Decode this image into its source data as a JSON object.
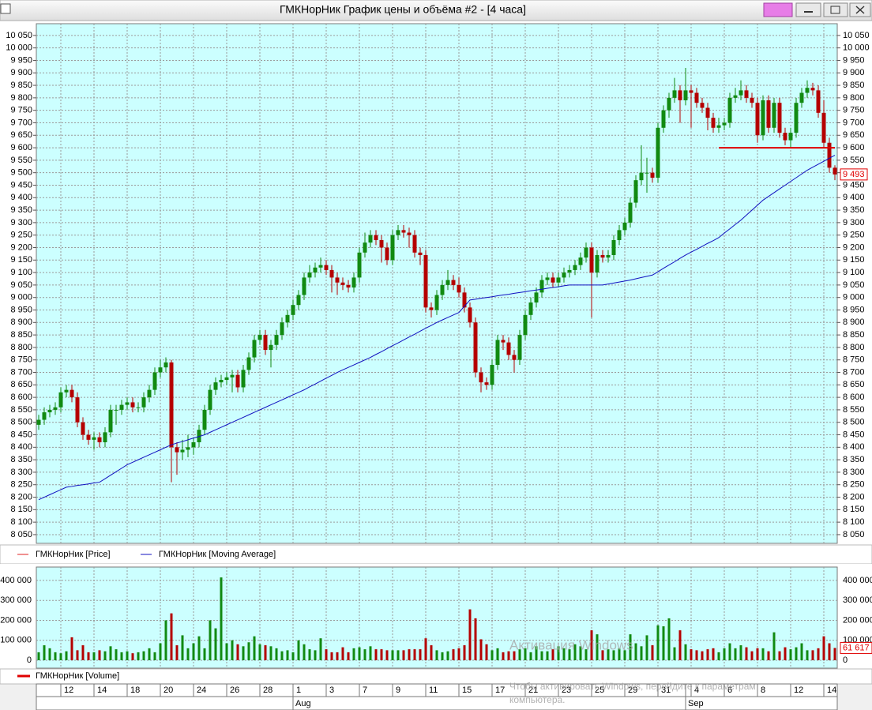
{
  "chart_data": {
    "type": "candlestick",
    "title": "ГМКНорНик График цены и объёма #2 - [4 часа]",
    "categories": [
      null,
      null,
      null,
      null,
      "12",
      null,
      null,
      null,
      null,
      null,
      "14",
      null,
      null,
      null,
      null,
      null,
      "18",
      null,
      null,
      null,
      null,
      null,
      "20",
      null,
      null,
      null,
      null,
      null,
      "24",
      null,
      null,
      null,
      null,
      null,
      "26",
      null,
      null,
      null,
      null,
      null,
      "28",
      null,
      null,
      null,
      null,
      null,
      "1",
      null,
      null,
      null,
      null,
      null,
      "3",
      null,
      null,
      null,
      null,
      null,
      "7",
      null,
      null,
      null,
      null,
      null,
      "9",
      null,
      null,
      null,
      null,
      null,
      "11",
      null,
      null,
      null,
      null,
      null,
      "15",
      null,
      null,
      null,
      null,
      null,
      "17",
      null,
      null,
      null,
      null,
      null,
      "21",
      null,
      null,
      null,
      null,
      null,
      "23",
      null,
      null,
      null,
      null,
      null,
      "25",
      null,
      null,
      null,
      null,
      null,
      "29",
      null,
      null,
      null,
      null,
      null,
      "31",
      null,
      null,
      null,
      null,
      null,
      "4",
      null,
      null,
      null,
      null,
      null,
      "6",
      null,
      null,
      null,
      null,
      null,
      "8",
      null,
      null,
      null,
      null,
      null,
      "12",
      null,
      null,
      null,
      null,
      null,
      "14",
      null,
      null
    ],
    "months": [
      null,
      null,
      null,
      null,
      null,
      null,
      null,
      null,
      null,
      null,
      null,
      null,
      null,
      null,
      null,
      null,
      null,
      null,
      null,
      null,
      null,
      null,
      null,
      null,
      null,
      null,
      null,
      null,
      null,
      null,
      null,
      null,
      null,
      null,
      null,
      null,
      null,
      null,
      null,
      null,
      null,
      null,
      null,
      null,
      null,
      null,
      "Aug",
      null,
      null,
      null,
      null,
      null,
      null,
      null,
      null,
      null,
      null,
      null,
      null,
      null,
      null,
      null,
      null,
      null,
      null,
      null,
      null,
      null,
      null,
      null,
      null,
      null,
      null,
      null,
      null,
      null,
      null,
      null,
      null,
      null,
      null,
      null,
      null,
      null,
      null,
      null,
      null,
      null,
      null,
      null,
      null,
      null,
      null,
      null,
      null,
      null,
      null,
      null,
      null,
      null,
      null,
      null,
      null,
      null,
      null,
      null,
      null,
      null,
      null,
      null,
      null,
      null,
      null,
      null,
      null,
      null,
      null,
      "Sep",
      null,
      null,
      null,
      null,
      null,
      null,
      null,
      null,
      null,
      null,
      null,
      null,
      null,
      null,
      null,
      null,
      null,
      null,
      null,
      null,
      null,
      null,
      null,
      null,
      null,
      null,
      null,
      null
    ],
    "open": [
      8490,
      8510,
      8540,
      8550,
      8560,
      8620,
      8630,
      8600,
      8500,
      8450,
      8430,
      8440,
      8420,
      8460,
      8550,
      8550,
      8570,
      8580,
      8560,
      8560,
      8600,
      8630,
      8700,
      8720,
      8740,
      8400,
      8380,
      8390,
      8400,
      8420,
      8470,
      8550,
      8630,
      8660,
      8670,
      8680,
      8690,
      8640,
      8710,
      8760,
      8830,
      8850,
      8790,
      8810,
      8850,
      8900,
      8930,
      8970,
      9010,
      9080,
      9100,
      9120,
      9130,
      9110,
      9080,
      9060,
      9050,
      9040,
      9080,
      9180,
      9220,
      9250,
      9230,
      9200,
      9150,
      9250,
      9270,
      9260,
      9250,
      9180,
      9170,
      8960,
      8950,
      9010,
      9050,
      9070,
      9050,
      9020,
      8960,
      8900,
      8700,
      8660,
      8650,
      8730,
      8830,
      8820,
      8770,
      8750,
      8850,
      8930,
      8980,
      9020,
      9070,
      9080,
      9060,
      9080,
      9100,
      9110,
      9130,
      9160,
      9200,
      9100,
      9170,
      9160,
      9170,
      9230,
      9270,
      9300,
      9380,
      9470,
      9500,
      9500,
      9480,
      9680,
      9750,
      9800,
      9830,
      9790,
      9830,
      9820,
      9780,
      9760,
      9720,
      9680,
      9690,
      9700,
      9800,
      9810,
      9830,
      9800,
      9780,
      9650,
      9790,
      9680,
      9780,
      9660,
      9630,
      9660,
      9780,
      9820,
      9840,
      9830,
      9740,
      9620,
      9520
    ],
    "high": [
      8530,
      8560,
      8570,
      8580,
      8640,
      8650,
      8650,
      8620,
      8520,
      8470,
      8460,
      8460,
      8480,
      8570,
      8570,
      8590,
      8600,
      8600,
      8580,
      8620,
      8650,
      8720,
      8750,
      8760,
      8750,
      8420,
      8430,
      8450,
      8440,
      8490,
      8570,
      8650,
      8680,
      8690,
      8700,
      8710,
      8710,
      8730,
      8780,
      8850,
      8870,
      8870,
      8830,
      8870,
      8920,
      8950,
      8990,
      9030,
      9100,
      9130,
      9140,
      9160,
      9150,
      9130,
      9100,
      9080,
      9070,
      9100,
      9200,
      9260,
      9270,
      9270,
      9250,
      9220,
      9270,
      9290,
      9290,
      9280,
      9270,
      9200,
      9190,
      8980,
      9030,
      9070,
      9110,
      9090,
      9080,
      9040,
      8980,
      8920,
      8720,
      8680,
      8750,
      8850,
      8850,
      8840,
      8790,
      8870,
      8950,
      9000,
      9040,
      9090,
      9100,
      9100,
      9100,
      9120,
      9130,
      9150,
      9180,
      9220,
      9220,
      9190,
      9190,
      9190,
      9250,
      9290,
      9320,
      9400,
      9490,
      9610,
      9560,
      9520,
      9700,
      9770,
      9820,
      9880,
      9850,
      9920,
      9850,
      9840,
      9800,
      9780,
      9740,
      9720,
      9720,
      9820,
      9840,
      9870,
      9850,
      9820,
      9800,
      9810,
      9810,
      9800,
      9800,
      9680,
      9680,
      9800,
      9840,
      9870,
      9860,
      9850,
      9790,
      9640,
      9530
    ],
    "low": [
      8470,
      8490,
      8520,
      8530,
      8540,
      8600,
      8580,
      8480,
      8430,
      8410,
      8390,
      8400,
      8400,
      8440,
      8490,
      8530,
      8550,
      8540,
      8540,
      8540,
      8580,
      8610,
      8680,
      8700,
      8260,
      8290,
      8350,
      8360,
      8370,
      8400,
      8450,
      8530,
      8610,
      8640,
      8650,
      8620,
      8620,
      8620,
      8690,
      8740,
      8810,
      8770,
      8720,
      8790,
      8830,
      8880,
      8910,
      8950,
      8990,
      9060,
      9080,
      9100,
      9090,
      9020,
      9010,
      9030,
      9020,
      9020,
      9060,
      9160,
      9200,
      9210,
      9140,
      9130,
      9130,
      9230,
      9240,
      9200,
      9160,
      9130,
      8940,
      8920,
      8930,
      8990,
      9030,
      9030,
      9000,
      8940,
      8880,
      8680,
      8620,
      8630,
      8630,
      8710,
      8790,
      8750,
      8700,
      8730,
      8830,
      8910,
      8960,
      9000,
      9050,
      9040,
      9040,
      9060,
      9080,
      9090,
      9110,
      9140,
      8920,
      9080,
      9140,
      9140,
      9150,
      9210,
      9250,
      9280,
      9360,
      9450,
      9420,
      9460,
      9460,
      9660,
      9720,
      9780,
      9700,
      9770,
      9680,
      9760,
      9740,
      9670,
      9660,
      9660,
      9670,
      9680,
      9780,
      9790,
      9780,
      9760,
      9620,
      9630,
      9660,
      9660,
      9640,
      9610,
      9600,
      9640,
      9760,
      9800,
      9810,
      9720,
      9600,
      9500,
      9470
    ],
    "close": [
      8510,
      8540,
      8550,
      8560,
      8620,
      8630,
      8600,
      8500,
      8450,
      8430,
      8440,
      8420,
      8460,
      8550,
      8550,
      8570,
      8580,
      8560,
      8560,
      8600,
      8630,
      8700,
      8720,
      8740,
      8400,
      8380,
      8390,
      8400,
      8420,
      8470,
      8550,
      8630,
      8660,
      8670,
      8680,
      8690,
      8640,
      8710,
      8760,
      8830,
      8850,
      8790,
      8810,
      8850,
      8900,
      8930,
      8970,
      9010,
      9080,
      9100,
      9120,
      9130,
      9110,
      9080,
      9060,
      9050,
      9040,
      9080,
      9180,
      9220,
      9250,
      9230,
      9200,
      9150,
      9250,
      9270,
      9260,
      9250,
      9180,
      9170,
      8960,
      8950,
      9010,
      9050,
      9070,
      9050,
      9020,
      8960,
      8900,
      8700,
      8660,
      8650,
      8730,
      8830,
      8820,
      8770,
      8750,
      8850,
      8930,
      8980,
      9020,
      9070,
      9080,
      9060,
      9080,
      9100,
      9110,
      9130,
      9160,
      9200,
      9100,
      9170,
      9160,
      9170,
      9230,
      9270,
      9300,
      9380,
      9470,
      9500,
      9500,
      9480,
      9680,
      9750,
      9800,
      9830,
      9790,
      9830,
      9820,
      9780,
      9760,
      9720,
      9680,
      9690,
      9700,
      9800,
      9810,
      9830,
      9800,
      9780,
      9650,
      9790,
      9680,
      9780,
      9660,
      9630,
      9660,
      9780,
      9820,
      9840,
      9830,
      9740,
      9620,
      9520,
      9493
    ],
    "last_label": "9 493",
    "up_color": "#118a11",
    "down_color": "#b50000",
    "price_legend": {
      "name": "ГМКНорНик [Price]",
      "color": "#e02020"
    },
    "moving_average": {
      "name": "ГМКНорНик [Moving Average]",
      "color": "#1010c0",
      "values": [
        8190,
        8200,
        8210,
        8220,
        8230,
        8240,
        8243,
        8247,
        8250,
        8253,
        8257,
        8260,
        8274,
        8288,
        8302,
        8316,
        8330,
        8340,
        8350,
        8360,
        8370,
        8380,
        8390,
        8400,
        8410,
        8417,
        8423,
        8430,
        8437,
        8443,
        8450,
        8460,
        8470,
        8480,
        8490,
        8500,
        8510,
        8520,
        8530,
        8540,
        8550,
        8560,
        8570,
        8580,
        8590,
        8600,
        8610,
        8620,
        8630,
        8642,
        8653,
        8665,
        8677,
        8688,
        8700,
        8710,
        8720,
        8730,
        8740,
        8750,
        8760,
        8772,
        8783,
        8795,
        8807,
        8818,
        8830,
        8842,
        8853,
        8865,
        8877,
        8888,
        8900,
        8910,
        8920,
        8930,
        8940,
        8965,
        8990,
        8993,
        8997,
        9000,
        9003,
        9007,
        9010,
        9013,
        9017,
        9020,
        9023,
        9027,
        9030,
        9033,
        9037,
        9040,
        9043,
        9047,
        9050,
        9050,
        9050,
        9050,
        9050,
        9050,
        9050,
        9054,
        9058,
        9062,
        9066,
        9070,
        9075,
        9080,
        9085,
        9090,
        9103,
        9117,
        9130,
        9143,
        9157,
        9170,
        9182,
        9193,
        9205,
        9217,
        9228,
        9240,
        9258,
        9275,
        9293,
        9310,
        9330,
        9350,
        9370,
        9390,
        9405,
        9420,
        9435,
        9450,
        9465,
        9480,
        9495,
        9510,
        9522,
        9534,
        9546,
        9558,
        9570
      ]
    },
    "level_line": {
      "value": 9600,
      "start": 123,
      "color": "#e00000"
    },
    "ylim": [
      8015,
      10097
    ],
    "yticks": [
      {
        "value": 8050,
        "label": "8 050"
      },
      {
        "value": 8100,
        "label": "8 100"
      },
      {
        "value": 8150,
        "label": "8 150"
      },
      {
        "value": 8200,
        "label": "8 200"
      },
      {
        "value": 8250,
        "label": "8 250"
      },
      {
        "value": 8300,
        "label": "8 300"
      },
      {
        "value": 8350,
        "label": "8 350"
      },
      {
        "value": 8400,
        "label": "8 400"
      },
      {
        "value": 8450,
        "label": "8 450"
      },
      {
        "value": 8500,
        "label": "8 500"
      },
      {
        "value": 8550,
        "label": "8 550"
      },
      {
        "value": 8600,
        "label": "8 600"
      },
      {
        "value": 8650,
        "label": "8 650"
      },
      {
        "value": 8700,
        "label": "8 700"
      },
      {
        "value": 8750,
        "label": "8 750"
      },
      {
        "value": 8800,
        "label": "8 800"
      },
      {
        "value": 8850,
        "label": "8 850"
      },
      {
        "value": 8900,
        "label": "8 900"
      },
      {
        "value": 8950,
        "label": "8 950"
      },
      {
        "value": 9000,
        "label": "9 000"
      },
      {
        "value": 9050,
        "label": "9 050"
      },
      {
        "value": 9100,
        "label": "9 100"
      },
      {
        "value": 9150,
        "label": "9 150"
      },
      {
        "value": 9200,
        "label": "9 200"
      },
      {
        "value": 9250,
        "label": "9 250"
      },
      {
        "value": 9300,
        "label": "9 300"
      },
      {
        "value": 9350,
        "label": "9 350"
      },
      {
        "value": 9400,
        "label": "9 400"
      },
      {
        "value": 9450,
        "label": "9 450"
      },
      {
        "value": 9500,
        "label": "9 500"
      },
      {
        "value": 9550,
        "label": "9 550"
      },
      {
        "value": 9600,
        "label": "9 600"
      },
      {
        "value": 9650,
        "label": "9 650"
      },
      {
        "value": 9700,
        "label": "9 700"
      },
      {
        "value": 9750,
        "label": "9 750"
      },
      {
        "value": 9800,
        "label": "9 800"
      },
      {
        "value": 9850,
        "label": "9 850"
      },
      {
        "value": 9900,
        "label": "9 900"
      },
      {
        "value": 9950,
        "label": "9 950"
      },
      {
        "value": 10000,
        "label": "10 000"
      },
      {
        "value": 10050,
        "label": "10 050"
      }
    ],
    "grid": true,
    "volume": {
      "name": "ГМКНорНик [Volume]",
      "color": "#e00000",
      "values": [
        40000,
        75000,
        60000,
        40000,
        35000,
        45000,
        115000,
        50000,
        75000,
        40000,
        40000,
        50000,
        45000,
        70000,
        55000,
        40000,
        45000,
        35000,
        40000,
        45000,
        60000,
        40000,
        85000,
        200000,
        235000,
        75000,
        125000,
        60000,
        85000,
        120000,
        60000,
        200000,
        160000,
        415000,
        85000,
        100000,
        80000,
        70000,
        90000,
        120000,
        80000,
        75000,
        70000,
        60000,
        45000,
        50000,
        40000,
        100000,
        80000,
        55000,
        50000,
        110000,
        55000,
        40000,
        40000,
        65000,
        40000,
        60000,
        65000,
        55000,
        70000,
        55000,
        55000,
        50000,
        50000,
        50000,
        50000,
        55000,
        55000,
        55000,
        110000,
        75000,
        50000,
        40000,
        45000,
        55000,
        60000,
        75000,
        255000,
        210000,
        105000,
        80000,
        50000,
        60000,
        40000,
        45000,
        45000,
        55000,
        60000,
        40000,
        70000,
        45000,
        45000,
        55000,
        70000,
        60000,
        55000,
        80000,
        70000,
        55000,
        150000,
        130000,
        50000,
        55000,
        50000,
        60000,
        50000,
        130000,
        85000,
        70000,
        125000,
        75000,
        175000,
        170000,
        210000,
        65000,
        150000,
        80000,
        55000,
        50000,
        45000,
        55000,
        60000,
        40000,
        60000,
        85000,
        60000,
        75000,
        65000,
        45000,
        60000,
        60000,
        45000,
        140000,
        45000,
        65000,
        55000,
        65000,
        85000,
        50000,
        50000,
        60000,
        120000,
        85000,
        61617
      ],
      "last_label": "61 617",
      "ylim": [
        -39600,
        467000
      ],
      "yticks": [
        0,
        {
          "value": 100000,
          "label": "100 000"
        },
        {
          "value": 200000,
          "label": "200 000"
        },
        {
          "value": 300000,
          "label": "300 000"
        },
        {
          "value": 400000,
          "label": "400 000"
        }
      ]
    }
  },
  "watermark": {
    "title": "Активация Windows",
    "lines": [
      "Чтобы активировать Windows, перейдите к параметрам",
      "компьютера."
    ]
  }
}
